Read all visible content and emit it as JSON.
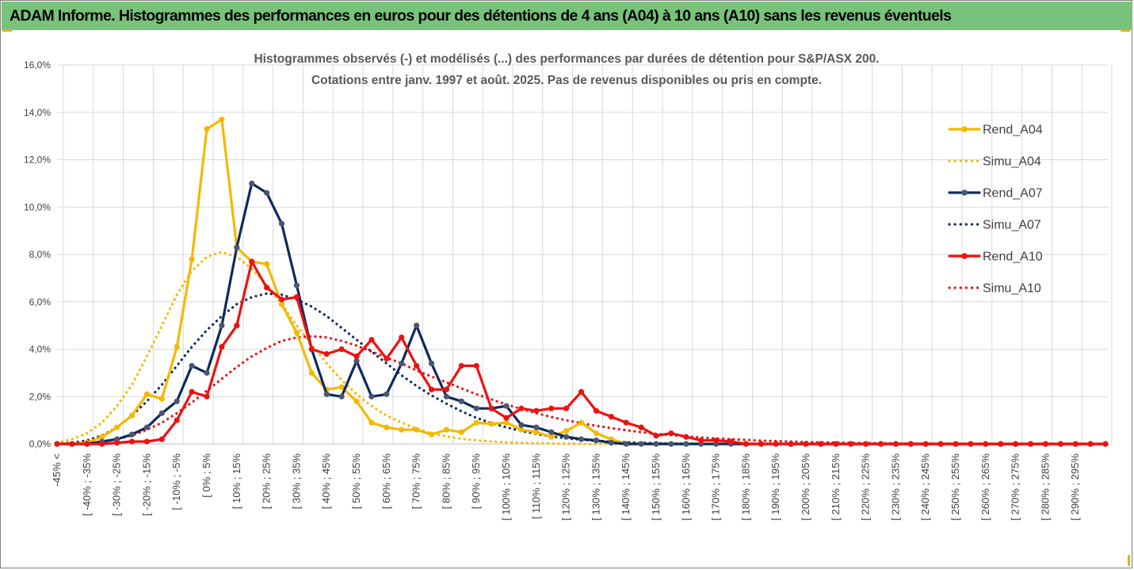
{
  "header": {
    "title": "ADAM Informe. Histogrammes des performances en euros pour des détentions de 4 ans (A04) à 10 ans (A10) sans les revenus éventuels"
  },
  "colors": {
    "header_bg": "#79c27b",
    "a04": "#f5b800",
    "a07": "#0e2a5c",
    "a10": "#ee1111",
    "gridline": "#d9d9d9"
  },
  "chart_data": {
    "type": "line",
    "title_line1": "Histogrammes observés (-) et modélisés (...) des performances par durées de détention pour S&P/ASX 200.",
    "title_line2": "Cotations entre janv. 1997 et août. 2025. Pas de revenus disponibles ou pris en compte.",
    "ylim": [
      0,
      16
    ],
    "y_ticks": [
      "0,0%",
      "2,0%",
      "4,0%",
      "6,0%",
      "8,0%",
      "10,0%",
      "12,0%",
      "14,0%",
      "16,0%"
    ],
    "grid": true,
    "legend_position": "right",
    "categories": [
      "-45% <",
      "[ -45% ; -40%",
      "[ -40% ; -35%",
      "[ -35% ; -30%",
      "[ -30% ; -25%",
      "[ -25% ; -20%",
      "[ -20% ; -15%",
      "[ -15% ; -10%",
      "[ -10% ; -5%",
      "[ -5% ; 0%",
      "[ 0% ; 5%",
      "[ 5% ; 10%",
      "[ 10% ; 15%",
      "[ 15% ; 20%",
      "[ 20% ; 25%",
      "[ 25% ; 30%",
      "[ 30% ; 35%",
      "[ 35% ; 40%",
      "[ 40% ; 45%",
      "[ 45% ; 50%",
      "[ 50% ; 55%",
      "[ 55% ; 60%",
      "[ 60% ; 65%",
      "[ 65% ; 70%",
      "[ 70% ; 75%",
      "[ 75% ; 80%",
      "[ 80% ; 85%",
      "[ 85% ; 90%",
      "[ 90% ; 95%",
      "[ 95% ; 100%",
      "[ 100% ; 105%",
      "[ 105% ; 110%",
      "[ 110% ; 115%",
      "[ 115% ; 120%",
      "[ 120% ; 125%",
      "[ 125% ; 130%",
      "[ 130% ; 135%",
      "[ 135% ; 140%",
      "[ 140% ; 145%",
      "[ 145% ; 150%",
      "[ 150% ; 155%",
      "[ 155% ; 160%",
      "[ 160% ; 165%",
      "[ 165% ; 170%",
      "[ 170% ; 175%",
      "[ 175% ; 180%",
      "[ 180% ; 185%",
      "[ 185% ; 190%",
      "[ 190% ; 195%",
      "[ 195% ; 200%",
      "[ 200% ; 205%",
      "[ 205% ; 210%",
      "[ 210% ; 215%",
      "[ 215% ; 220%",
      "[ 220% ; 225%",
      "[ 225% ; 230%",
      "[ 230% ; 235%",
      "[ 235% ; 240%",
      "[ 240% ; 245%",
      "[ 245% ; 250%",
      "[ 250% ; 255%",
      "[ 255% ; 260%",
      "[ 260% ; 265%",
      "[ 265% ; 270%",
      "[ 270% ; 275%",
      "[ 275% ; 280%",
      "[ 280% ; 285%",
      "[ 285% ; 290%",
      "[ 290% ; 295%",
      "[ 295% ; 300%",
      ">= 300%"
    ],
    "shown_category_labels": [
      "-45% <",
      "[ -40% ; -35%",
      "[ -30% ; -25%",
      "[ -20% ; -15%",
      "[ -10% ; -5%",
      "[ 0% ; 5%",
      "[ 10% ; 15%",
      "[ 20% ; 25%",
      "[ 30% ; 35%",
      "[ 40% ; 45%",
      "[ 50% ; 55%",
      "[ 60% ; 65%",
      "[ 70% ; 75%",
      "[ 80% ; 85%",
      "[ 90% ; 95%",
      "[ 100% ; 105%",
      "[ 110% ; 115%",
      "[ 120% ; 125%",
      "[ 130% ; 135%",
      "[ 140% ; 145%",
      "[ 150% ; 155%",
      "[ 160% ; 165%",
      "[ 170% ; 175%",
      "[ 180% ; 185%",
      "[ 190% ; 195%",
      "[ 200% ; 205%",
      "[ 210% ; 215%",
      "[ 220% ; 225%",
      "[ 230% ; 235%",
      "[ 240% ; 245%",
      "[ 250% ; 255%",
      "[ 260% ; 265%",
      "[ 270% ; 275%",
      "[ 280% ; 285%",
      "[ 290% ; 295%"
    ],
    "series": [
      {
        "name": "Rend_A04",
        "style": "solid",
        "markers": true,
        "color": "#f5b800",
        "values": [
          0,
          0,
          0.05,
          0.3,
          0.7,
          1.2,
          2.1,
          1.9,
          4.1,
          7.8,
          13.3,
          13.7,
          8.3,
          7.7,
          7.6,
          5.9,
          4.7,
          3.0,
          2.3,
          2.4,
          1.8,
          0.9,
          0.7,
          0.6,
          0.6,
          0.4,
          0.6,
          0.5,
          0.9,
          0.85,
          0.9,
          0.6,
          0.5,
          0.3,
          0.55,
          0.9,
          0.45,
          0.2,
          0,
          0,
          0,
          0,
          0,
          0,
          0,
          0,
          0,
          0,
          0,
          0,
          0,
          0,
          0,
          0,
          0,
          0,
          0,
          0,
          0,
          0,
          0,
          0,
          0,
          0,
          0,
          0,
          0,
          0,
          0,
          0,
          0
        ]
      },
      {
        "name": "Simu_A04",
        "style": "dotted",
        "markers": false,
        "color": "#f5b800",
        "values": [
          0.05,
          0.2,
          0.45,
          0.9,
          1.6,
          2.5,
          3.7,
          5.0,
          6.3,
          7.3,
          7.9,
          8.1,
          7.9,
          7.4,
          6.7,
          5.9,
          5.0,
          4.2,
          3.4,
          2.7,
          2.1,
          1.6,
          1.2,
          0.9,
          0.65,
          0.45,
          0.32,
          0.22,
          0.15,
          0.1,
          0.07,
          0.05,
          0.03,
          0.02,
          0.01,
          0,
          0,
          0,
          0,
          0,
          0,
          0,
          0,
          0,
          0,
          0,
          0,
          0,
          0,
          0,
          0,
          0,
          0,
          0,
          0,
          0,
          0,
          0,
          0,
          0,
          0,
          0,
          0,
          0,
          0,
          0,
          0,
          0,
          0,
          0,
          0
        ]
      },
      {
        "name": "Rend_A07",
        "style": "solid",
        "markers": true,
        "color": "#0e2a5c",
        "values": [
          0,
          0,
          0,
          0.1,
          0.2,
          0.4,
          0.7,
          1.3,
          1.8,
          3.3,
          3.0,
          5.0,
          8.3,
          11.0,
          10.6,
          9.3,
          6.7,
          4.0,
          2.1,
          2.0,
          3.5,
          2.0,
          2.1,
          3.4,
          5.0,
          3.4,
          2.0,
          1.8,
          1.5,
          1.5,
          1.6,
          0.8,
          0.7,
          0.5,
          0.3,
          0.2,
          0.15,
          0.05,
          0,
          0,
          0,
          0,
          0,
          0,
          0,
          0,
          0,
          0,
          0,
          0,
          0,
          0,
          0,
          0,
          0,
          0,
          0,
          0,
          0,
          0,
          0,
          0,
          0,
          0,
          0,
          0,
          0,
          0,
          0,
          0,
          0
        ]
      },
      {
        "name": "Simu_A07",
        "style": "dotted",
        "markers": false,
        "color": "#0e2a5c",
        "values": [
          0,
          0.05,
          0.15,
          0.35,
          0.7,
          1.2,
          1.8,
          2.5,
          3.3,
          4.1,
          4.8,
          5.4,
          5.9,
          6.2,
          6.35,
          6.3,
          6.1,
          5.8,
          5.4,
          4.9,
          4.4,
          3.9,
          3.4,
          2.9,
          2.45,
          2.05,
          1.7,
          1.38,
          1.1,
          0.88,
          0.7,
          0.55,
          0.42,
          0.32,
          0.24,
          0.18,
          0.13,
          0.1,
          0.07,
          0.05,
          0.03,
          0.02,
          0.01,
          0,
          0,
          0,
          0,
          0,
          0,
          0,
          0,
          0,
          0,
          0,
          0,
          0,
          0,
          0,
          0,
          0,
          0,
          0,
          0,
          0,
          0,
          0,
          0,
          0,
          0,
          0,
          0
        ]
      },
      {
        "name": "Rend_A10",
        "style": "solid",
        "markers": true,
        "color": "#ee1111",
        "values": [
          0,
          0,
          0,
          0,
          0.05,
          0.1,
          0.1,
          0.2,
          1.0,
          2.2,
          2.0,
          4.1,
          5.0,
          7.7,
          6.6,
          6.1,
          6.2,
          4.0,
          3.8,
          4.0,
          3.7,
          4.4,
          3.6,
          4.5,
          3.3,
          2.3,
          2.3,
          3.3,
          3.3,
          1.5,
          1.1,
          1.5,
          1.4,
          1.5,
          1.5,
          2.2,
          1.4,
          1.15,
          0.9,
          0.7,
          0.35,
          0.45,
          0.3,
          0.15,
          0.15,
          0.1,
          0,
          0,
          0,
          0,
          0,
          0,
          0,
          0,
          0,
          0,
          0,
          0,
          0,
          0,
          0,
          0,
          0,
          0,
          0,
          0,
          0,
          0,
          0,
          0,
          0
        ]
      },
      {
        "name": "Simu_A10",
        "style": "dotted",
        "markers": false,
        "color": "#ee1111",
        "values": [
          0,
          0,
          0.05,
          0.1,
          0.2,
          0.35,
          0.6,
          0.9,
          1.3,
          1.75,
          2.25,
          2.75,
          3.25,
          3.7,
          4.05,
          4.35,
          4.5,
          4.55,
          4.5,
          4.35,
          4.15,
          3.9,
          3.65,
          3.4,
          3.1,
          2.85,
          2.6,
          2.35,
          2.1,
          1.88,
          1.67,
          1.48,
          1.3,
          1.14,
          1.0,
          0.88,
          0.77,
          0.67,
          0.58,
          0.5,
          0.43,
          0.37,
          0.32,
          0.27,
          0.23,
          0.2,
          0.17,
          0.14,
          0.12,
          0.1,
          0.08,
          0.07,
          0.06,
          0.05,
          0.04,
          0.03,
          0.025,
          0.02,
          0.015,
          0.01,
          0.01,
          0.005,
          0,
          0,
          0,
          0,
          0,
          0,
          0,
          0,
          0
        ]
      }
    ]
  }
}
